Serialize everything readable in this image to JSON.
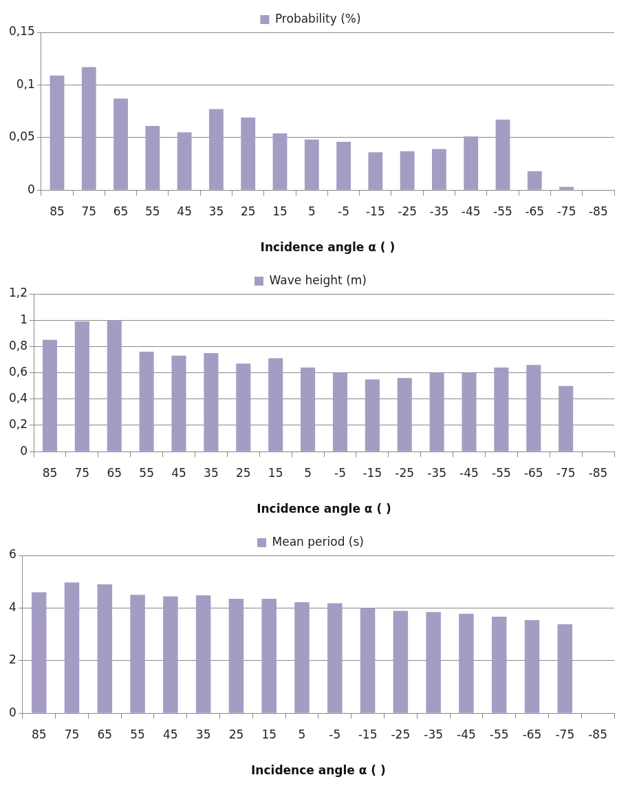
{
  "chart_data": [
    {
      "type": "bar",
      "xlabel": "Incidence angle α ( )",
      "categories": [
        "85",
        "75",
        "65",
        "55",
        "45",
        "35",
        "25",
        "15",
        "5",
        "-5",
        "-15",
        "-25",
        "-35",
        "-45",
        "-55",
        "-65",
        "-75",
        "-85"
      ],
      "series": [
        {
          "name": "Probability (%)",
          "color": "#a59cc4",
          "values": [
            0.109,
            0.117,
            0.087,
            0.061,
            0.055,
            0.077,
            0.069,
            0.054,
            0.048,
            0.046,
            0.036,
            0.037,
            0.039,
            0.051,
            0.067,
            0.018,
            0.003,
            0
          ]
        }
      ],
      "ylim": [
        0,
        0.15
      ],
      "yticks": [
        0,
        {
          "value": 0.05,
          "label": "0,05"
        },
        {
          "value": 0.1,
          "label": "0,1"
        },
        {
          "value": 0.15,
          "label": "0,15"
        }
      ],
      "grid": "y",
      "legend": "top"
    },
    {
      "type": "bar",
      "xlabel": "Incidence angle α ( )",
      "categories": [
        "85",
        "75",
        "65",
        "55",
        "45",
        "35",
        "25",
        "15",
        "5",
        "-5",
        "-15",
        "-25",
        "-35",
        "-45",
        "-55",
        "-65",
        "-75",
        "-85"
      ],
      "series": [
        {
          "name": "Wave height (m)",
          "color": "#a59cc4",
          "values": [
            0.85,
            0.99,
            1.0,
            0.76,
            0.73,
            0.75,
            0.67,
            0.71,
            0.64,
            0.6,
            0.55,
            0.56,
            0.6,
            0.6,
            0.64,
            0.66,
            0.5,
            0
          ]
        }
      ],
      "ylim": [
        0,
        1.2
      ],
      "yticks": [
        0,
        {
          "value": 0.2,
          "label": "0,2"
        },
        {
          "value": 0.4,
          "label": "0,4"
        },
        {
          "value": 0.6,
          "label": "0,6"
        },
        {
          "value": 0.8,
          "label": "0,8"
        },
        1,
        {
          "value": 1.2,
          "label": "1,2"
        }
      ],
      "grid": "y",
      "legend": "top"
    },
    {
      "type": "bar",
      "xlabel": "Incidence angle α ( )",
      "categories": [
        "85",
        "75",
        "65",
        "55",
        "45",
        "35",
        "25",
        "15",
        "5",
        "-5",
        "-15",
        "-25",
        "-35",
        "-45",
        "-55",
        "-65",
        "-75",
        "-85"
      ],
      "series": [
        {
          "name": "Mean period (s)",
          "color": "#a59cc4",
          "values": [
            4.6,
            4.97,
            4.9,
            4.5,
            4.44,
            4.48,
            4.35,
            4.35,
            4.22,
            4.18,
            4.0,
            3.89,
            3.85,
            3.78,
            3.67,
            3.54,
            3.38,
            0
          ]
        }
      ],
      "ylim": [
        0,
        6
      ],
      "yticks": [
        0,
        2,
        4,
        6
      ],
      "grid": "y",
      "legend": "top"
    }
  ]
}
